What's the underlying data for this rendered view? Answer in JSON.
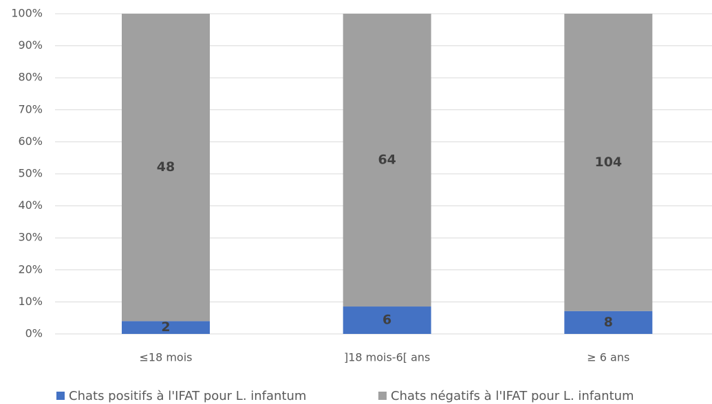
{
  "chart_data": {
    "type": "bar",
    "stacking": "percent",
    "categories": [
      "≤18 mois",
      "]18 mois-6[ ans",
      "≥ 6 ans"
    ],
    "series": [
      {
        "name": "Chats positifs à l'IFAT pour L. infantum",
        "color": "#4472c4",
        "values": [
          2,
          6,
          8
        ]
      },
      {
        "name": "Chats négatifs à l'IFAT pour L. infantum",
        "color": "#a0a0a0",
        "values": [
          48,
          64,
          104
        ]
      }
    ],
    "ylim": [
      0,
      100
    ],
    "yticks": [
      {
        "value": 0,
        "label": "0%"
      },
      {
        "value": 10,
        "label": "10%"
      },
      {
        "value": 20,
        "label": "20%"
      },
      {
        "value": 30,
        "label": "30%"
      },
      {
        "value": 40,
        "label": "40%"
      },
      {
        "value": 50,
        "label": "50%"
      },
      {
        "value": 60,
        "label": "60%"
      },
      {
        "value": 70,
        "label": "70%"
      },
      {
        "value": 80,
        "label": "80%"
      },
      {
        "value": 90,
        "label": "90%"
      },
      {
        "value": 100,
        "label": "100%"
      }
    ],
    "grid": true,
    "legend": "bottom"
  }
}
